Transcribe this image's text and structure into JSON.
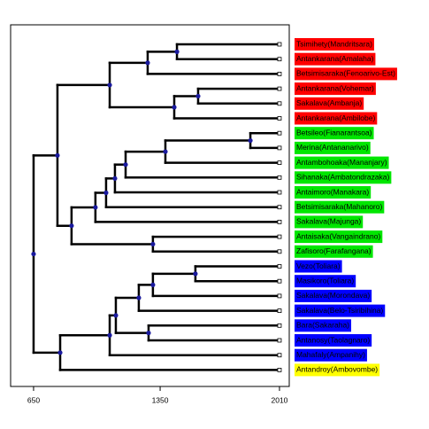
{
  "chart_data": {
    "type": "dendrogram",
    "xlim": [
      523,
      2064
    ],
    "xticks": [
      650,
      1350,
      2010
    ],
    "tree": {
      "height": 650,
      "children": [
        {
          "height": 782,
          "children": [
            {
              "height": 1071,
              "children": [
                {
                  "height": 1281,
                  "children": [
                    {
                      "height": 1443,
                      "children": [
                        {
                          "label": "Tsimihety(Mandritsara)",
                          "color": "#ff0000"
                        },
                        {
                          "label": "Antankarana(Amalaha)",
                          "color": "#ff0000"
                        }
                      ]
                    },
                    {
                      "label": "Betsimisaraka(Fenoarivo-Est)",
                      "color": "#ff0000"
                    }
                  ]
                },
                {
                  "height": 1428,
                  "children": [
                    {
                      "height": 1560,
                      "children": [
                        {
                          "label": "Antankarana(Vohemar)",
                          "color": "#ff0000"
                        },
                        {
                          "label": "Sakalava(Ambanja)",
                          "color": "#ff0000"
                        }
                      ]
                    },
                    {
                      "label": "Antankarana(Ambilobe)",
                      "color": "#ff0000"
                    }
                  ]
                }
              ]
            },
            {
              "height": 860,
              "children": [
                {
                  "height": 992,
                  "children": [
                    {
                      "height": 1051,
                      "children": [
                        {
                          "height": 1100,
                          "children": [
                            {
                              "height": 1159,
                              "children": [
                                {
                                  "height": 1379,
                                  "children": [
                                    {
                                      "height": 1849,
                                      "children": [
                                        {
                                          "label": "Betsileo(Fianarantsoa)",
                                          "color": "#00e600"
                                        },
                                        {
                                          "label": "Merina(Antananarivo)",
                                          "color": "#00e600"
                                        }
                                      ]
                                    },
                                    {
                                      "label": "Antambohoaka(Mananjary)",
                                      "color": "#00e600"
                                    }
                                  ]
                                },
                                {
                                  "label": "Sihanaka(Ambatondrazaka)",
                                  "color": "#00e600"
                                }
                              ]
                            },
                            {
                              "label": "Antaimoro(Manakara)",
                              "color": "#00e600"
                            }
                          ]
                        },
                        {
                          "label": "Betsimisaraka(Mahanoro)",
                          "color": "#00e600"
                        }
                      ]
                    },
                    {
                      "label": "Sakalava(Majunga)",
                      "color": "#00e600"
                    }
                  ]
                },
                {
                  "height": 1310,
                  "children": [
                    {
                      "label": "Antaisaka(Vangaindrano)",
                      "color": "#00e600"
                    },
                    {
                      "label": "Zafisoro(Farafangana)",
                      "color": "#00e600"
                    }
                  ]
                }
              ]
            }
          ]
        },
        {
          "height": 797,
          "children": [
            {
              "height": 1071,
              "children": [
                {
                  "height": 1105,
                  "children": [
                    {
                      "height": 1232,
                      "children": [
                        {
                          "height": 1310,
                          "children": [
                            {
                              "height": 1545,
                              "children": [
                                {
                                  "label": "Vezo(Toliara)",
                                  "color": "#0000ff"
                                },
                                {
                                  "label": "Masikoro(Toliara)",
                                  "color": "#0000ff"
                                }
                              ]
                            },
                            {
                              "label": "Sakalava(Morondava)",
                              "color": "#0000ff"
                            }
                          ]
                        },
                        {
                          "label": "Sakalava(Belo-Tsiribihina)",
                          "color": "#0000ff"
                        }
                      ]
                    },
                    {
                      "height": 1286,
                      "children": [
                        {
                          "label": "Bara(Sakaraha)",
                          "color": "#0000ff"
                        },
                        {
                          "label": "Antanosy(Taolagnaro)",
                          "color": "#0000ff"
                        }
                      ]
                    }
                  ]
                },
                {
                  "label": "Mahafaly(Ampanihy)",
                  "color": "#0000ff"
                }
              ]
            },
            {
              "label": "Antandroy(Ambovombe)",
              "color": "#ffff00"
            }
          ]
        }
      ]
    }
  }
}
